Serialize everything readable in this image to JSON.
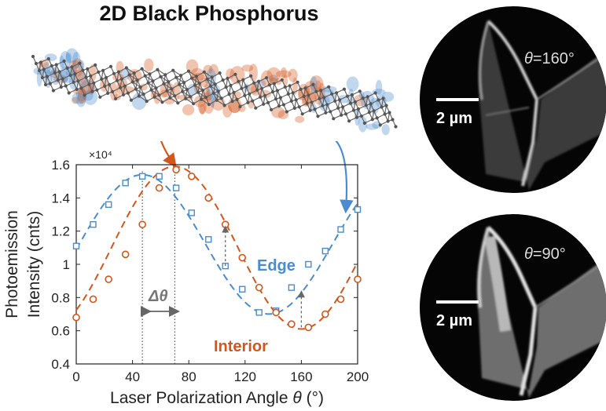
{
  "title": "2D Black Phosphorus",
  "colors": {
    "edge": "#4a8ccf",
    "interior": "#d4561a",
    "atom": "#5a5a5a",
    "annotation": "#777777"
  },
  "chart_data": {
    "type": "scatter",
    "xlabel_text": "Laser Polarization Angle ",
    "xlabel_symbol": "θ",
    "xlabel_unit": " (°)",
    "ylabel_line1": "Photoemission",
    "ylabel_line2": "Intensity (cnts)",
    "y_multiplier": "×10⁴",
    "xlim": [
      0,
      200
    ],
    "ylim": [
      0.4,
      1.6
    ],
    "xticks": [
      "0",
      "40",
      "80",
      "120",
      "160",
      "200"
    ],
    "yticks": [
      "0.4",
      "0.6",
      "0.8",
      "1",
      "1.2",
      "1.4",
      "1.6"
    ],
    "series": [
      {
        "name": "Edge",
        "color": "#4a8ccf",
        "marker": "square",
        "x": [
          0,
          12,
          23,
          35,
          47,
          59,
          71,
          82,
          94,
          106,
          118,
          130,
          142,
          153,
          165,
          177,
          188,
          200
        ],
        "y": [
          1.11,
          1.24,
          1.36,
          1.49,
          1.53,
          1.53,
          1.46,
          1.31,
          1.15,
          0.99,
          0.85,
          0.71,
          0.72,
          0.86,
          1.0,
          1.08,
          1.21,
          1.33
        ],
        "fit_amp": 0.42,
        "fit_offset": 1.12,
        "fit_phase_deg": 47
      },
      {
        "name": "Interior",
        "color": "#d4561a",
        "marker": "circle",
        "x": [
          0,
          12,
          23,
          35,
          47,
          59,
          71,
          82,
          94,
          106,
          118,
          130,
          142,
          153,
          165,
          177,
          188,
          200
        ],
        "y": [
          0.68,
          0.79,
          0.91,
          1.06,
          1.24,
          1.46,
          1.57,
          1.53,
          1.4,
          1.24,
          1.04,
          0.86,
          0.71,
          0.64,
          0.62,
          0.7,
          0.79,
          0.91
        ],
        "fit_amp": 0.49,
        "fit_offset": 1.1,
        "fit_phase_deg": 70
      }
    ],
    "annotations": {
      "delta_label": "Δθ",
      "vlines_x": [
        47,
        70
      ]
    }
  },
  "micrographs": [
    {
      "angle_symbol": "θ",
      "angle_value": "=160°",
      "scalebar": "2 µm"
    },
    {
      "angle_symbol": "θ",
      "angle_value": "=90°",
      "scalebar": "2 µm"
    }
  ]
}
